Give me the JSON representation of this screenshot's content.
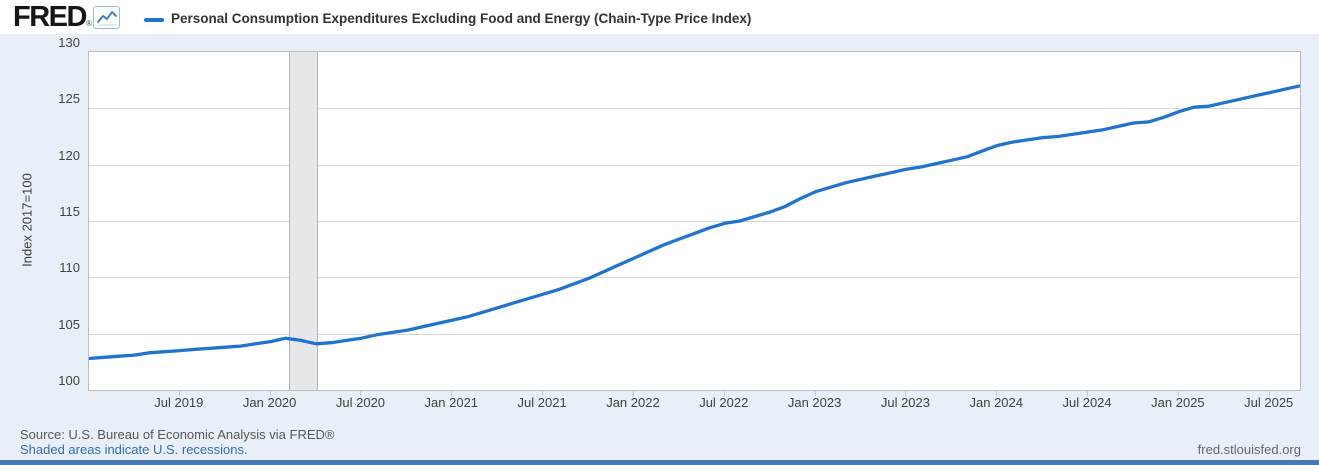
{
  "header": {
    "logo_text": "FRED",
    "logo_registered_mark": "®",
    "legend": {
      "series_label": "Personal Consumption Expenditures Excluding Food and Energy (Chain-Type Price Index)",
      "series_color": "#2273cc"
    }
  },
  "chart_data": {
    "type": "line",
    "title": "Personal Consumption Expenditures Excluding Food and Energy (Chain-Type Price Index)",
    "ylabel": "Index 2017=100",
    "ylim": [
      100,
      130
    ],
    "y_ticks": [
      100,
      105,
      110,
      115,
      120,
      125,
      130
    ],
    "frequency": "monthly",
    "start_date": "2019-01",
    "end_date": "2025-09",
    "grid": true,
    "legend_position": "top",
    "x_ticks": [
      {
        "label": "Jul 2019",
        "month_index": 6
      },
      {
        "label": "Jan 2020",
        "month_index": 12
      },
      {
        "label": "Jul 2020",
        "month_index": 18
      },
      {
        "label": "Jan 2021",
        "month_index": 24
      },
      {
        "label": "Jul 2021",
        "month_index": 30
      },
      {
        "label": "Jan 2022",
        "month_index": 36
      },
      {
        "label": "Jul 2022",
        "month_index": 42
      },
      {
        "label": "Jan 2023",
        "month_index": 48
      },
      {
        "label": "Jul 2023",
        "month_index": 54
      },
      {
        "label": "Jan 2024",
        "month_index": 60
      },
      {
        "label": "Jul 2024",
        "month_index": 66
      },
      {
        "label": "Jan 2025",
        "month_index": 72
      },
      {
        "label": "Jul 2025",
        "month_index": 78
      }
    ],
    "recession_band": {
      "from": "Feb 2020",
      "to": "Apr 2020",
      "from_month_index": 13.2,
      "to_month_index": 15.1
    },
    "series": [
      {
        "name": "Personal Consumption Expenditures Excluding Food and Energy (Chain-Type Price Index)",
        "color": "#2273cc",
        "values": [
          102.8,
          102.9,
          103.0,
          103.1,
          103.3,
          103.4,
          103.5,
          103.6,
          103.7,
          103.8,
          103.9,
          104.1,
          104.3,
          104.6,
          104.4,
          104.1,
          104.2,
          104.4,
          104.6,
          104.9,
          105.1,
          105.3,
          105.6,
          105.9,
          106.2,
          106.5,
          106.9,
          107.3,
          107.7,
          108.1,
          108.5,
          108.9,
          109.4,
          109.9,
          110.5,
          111.1,
          111.7,
          112.3,
          112.9,
          113.4,
          113.9,
          114.4,
          114.8,
          115.0,
          115.4,
          115.8,
          116.3,
          117.0,
          117.6,
          118.0,
          118.4,
          118.7,
          119.0,
          119.3,
          119.6,
          119.8,
          120.1,
          120.4,
          120.7,
          121.2,
          121.7,
          122.0,
          122.2,
          122.4,
          122.5,
          122.7,
          122.9,
          123.1,
          123.4,
          123.7,
          123.8,
          124.2,
          124.7,
          125.1,
          125.2,
          125.5,
          125.8,
          126.1,
          126.4,
          126.7,
          127.0
        ]
      }
    ]
  },
  "footer": {
    "source_line": "Source: U.S. Bureau of Economic Analysis via FRED®",
    "recession_note": "Shaded areas indicate U.S. recessions.",
    "site_url": "fred.stlouisfed.org"
  },
  "colors": {
    "page_background": "#e9eff6",
    "header_background": "#ffffff",
    "plot_background": "#ffffff",
    "gridline": "#d6d7da",
    "recession_fill": "#e6e7eb",
    "series_line": "#2273cc",
    "bottom_bar": "#4779b4"
  }
}
